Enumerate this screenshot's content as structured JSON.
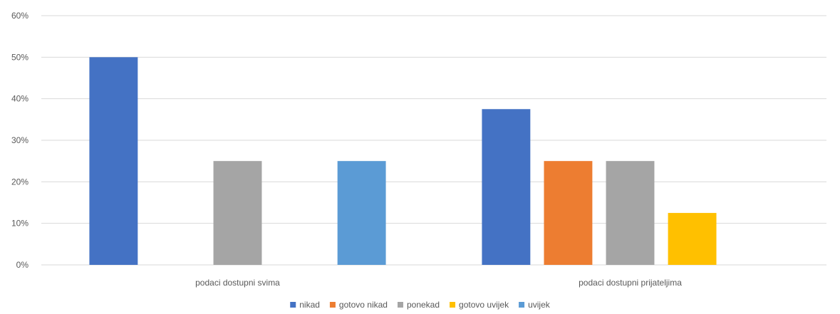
{
  "chart_data": {
    "type": "bar",
    "categories": [
      "podaci dostupni svima",
      "podaci dostupni prijateljima"
    ],
    "series": [
      {
        "name": "nikad",
        "color": "#4472C4",
        "values": [
          50,
          37.5
        ]
      },
      {
        "name": "gotovo nikad",
        "color": "#ED7D31",
        "values": [
          0,
          25
        ]
      },
      {
        "name": "ponekad",
        "color": "#A5A5A5",
        "values": [
          25,
          25
        ]
      },
      {
        "name": "gotovo uvijek",
        "color": "#FFC000",
        "values": [
          0,
          12.5
        ]
      },
      {
        "name": "uvijek",
        "color": "#5B9BD5",
        "values": [
          25,
          0
        ]
      }
    ],
    "yticks": [
      "0%",
      "10%",
      "20%",
      "30%",
      "40%",
      "50%",
      "60%"
    ],
    "ylim": [
      0,
      60
    ],
    "grid": true,
    "legend_position": "bottom",
    "gridline_color": "#D9D9D9"
  }
}
